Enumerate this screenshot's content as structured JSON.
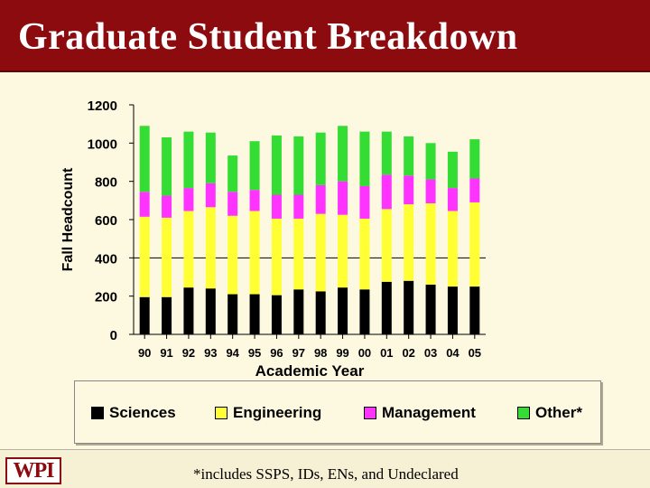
{
  "slide": {
    "title": "Graduate Student Breakdown",
    "logo_text": "WPI",
    "footnote": "*includes SSPS, IDs, ENs, and Undeclared"
  },
  "colors": {
    "title_bar": "#8b0b0f",
    "background": "#fdf8e0"
  },
  "chart_data": {
    "type": "bar",
    "stacked": true,
    "title": "",
    "xlabel": "Academic Year",
    "ylabel": "Fall Headcount",
    "ylim": [
      0,
      1200
    ],
    "yticks": [
      0,
      200,
      400,
      600,
      800,
      1000,
      1200
    ],
    "gridlines": [
      400
    ],
    "legend_position": "bottom",
    "categories": [
      "90",
      "91",
      "92",
      "93",
      "94",
      "95",
      "96",
      "97",
      "98",
      "99",
      "00",
      "01",
      "02",
      "03",
      "04",
      "05"
    ],
    "series": [
      {
        "name": "Sciences",
        "color": "#000000",
        "values": [
          195,
          195,
          245,
          240,
          210,
          210,
          205,
          235,
          225,
          245,
          235,
          275,
          280,
          260,
          250,
          250
        ]
      },
      {
        "name": "Engineering",
        "color": "#ffff33",
        "values": [
          420,
          415,
          400,
          425,
          410,
          435,
          400,
          370,
          405,
          380,
          370,
          380,
          400,
          425,
          395,
          440
        ]
      },
      {
        "name": "Management",
        "color": "#ff33ff",
        "values": [
          130,
          115,
          120,
          125,
          125,
          110,
          125,
          125,
          150,
          175,
          170,
          180,
          150,
          125,
          120,
          125
        ]
      },
      {
        "name": "Other*",
        "color": "#33dd33",
        "values": [
          345,
          305,
          295,
          265,
          190,
          255,
          310,
          305,
          275,
          290,
          285,
          225,
          205,
          190,
          190,
          205
        ]
      }
    ]
  }
}
